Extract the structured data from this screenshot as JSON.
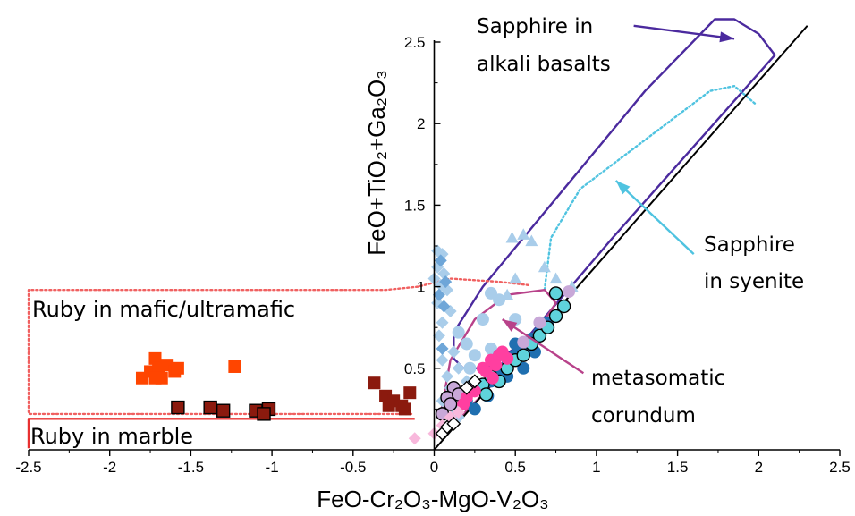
{
  "chart_data": {
    "type": "scatter",
    "title": "",
    "xlabel": "FeO-Cr₂O₃-MgO-V₂O₃",
    "ylabel": "FeO+TiO₂+Ga₂O₃",
    "xlim": [
      -2.5,
      2.5
    ],
    "ylim": [
      0,
      2.6
    ],
    "x_ticks": [
      -2.5,
      -2,
      -1.5,
      -1,
      -0.5,
      0,
      0.5,
      1,
      1.5,
      2,
      2.5
    ],
    "x_tick_labels": [
      "-2.5",
      "-2",
      "-1.5",
      "-1",
      "-0.5",
      "0",
      "0.5",
      "1",
      "1.5",
      "2",
      "2.5"
    ],
    "y_ticks": [
      0.5,
      1,
      1.5,
      2,
      2.5
    ],
    "y_tick_labels": [
      "0.5",
      "1",
      "1.5",
      "2",
      "2.5"
    ],
    "grid": false,
    "colors": {
      "mafic_ruby": "#ff4500",
      "marble_ruby": "#8b1a0e",
      "alkali_basalt_field": "#4b2a9e",
      "syenite_field": "#4fc3e0",
      "metasomatic_field": "#b8428a",
      "mafic_field": "#f06060",
      "marble_field": "#e83030",
      "dark_blue": "#1f6fb0",
      "light_blue": "#a9cdea",
      "cyan": "#5fd3dc",
      "pink": "#ff3fa0",
      "light_pink": "#f8b8dc",
      "lavender": "#c8a8d8"
    },
    "one_to_one_line": [
      [
        0,
        0
      ],
      [
        2.3,
        2.6
      ]
    ],
    "series": [
      {
        "marker": "square",
        "color": "#ff4500",
        "edge": "none",
        "points": [
          [
            -1.8,
            0.44
          ],
          [
            -1.75,
            0.48
          ],
          [
            -1.72,
            0.56
          ],
          [
            -1.7,
            0.5
          ],
          [
            -1.68,
            0.44
          ],
          [
            -1.65,
            0.52
          ],
          [
            -1.6,
            0.48
          ],
          [
            -1.58,
            0.5
          ],
          [
            -1.72,
            0.44
          ],
          [
            -1.23,
            0.51
          ]
        ]
      },
      {
        "marker": "square",
        "color": "#8b1a0e",
        "edge": "none",
        "points": [
          [
            -0.37,
            0.41
          ],
          [
            -0.3,
            0.33
          ],
          [
            -0.25,
            0.3
          ],
          [
            -0.2,
            0.27
          ],
          [
            -0.15,
            0.35
          ],
          [
            -0.28,
            0.27
          ],
          [
            -0.18,
            0.25
          ]
        ]
      },
      {
        "marker": "square",
        "color": "#8b1a0e",
        "edge": "#000000",
        "points": [
          [
            -1.58,
            0.26
          ],
          [
            -1.38,
            0.26
          ],
          [
            -1.3,
            0.24
          ],
          [
            -1.1,
            0.24
          ],
          [
            -1.02,
            0.25
          ],
          [
            -1.05,
            0.22
          ]
        ]
      },
      {
        "marker": "diamond",
        "color": "#a9cdea",
        "edge": "none",
        "points": [
          [
            0.02,
            1.22
          ],
          [
            0.05,
            1.2
          ],
          [
            0.02,
            1.12
          ],
          [
            0.06,
            1.08
          ],
          [
            0.0,
            1.05
          ],
          [
            0.04,
            1.01
          ],
          [
            0.08,
            0.98
          ],
          [
            0.02,
            0.9
          ],
          [
            0.1,
            0.85
          ],
          [
            0.05,
            0.78
          ],
          [
            0.03,
            0.7
          ],
          [
            0.12,
            0.6
          ],
          [
            0.05,
            0.55
          ],
          [
            0.15,
            0.5
          ],
          [
            0.08,
            0.45
          ],
          [
            0.2,
            0.42
          ],
          [
            0.1,
            0.38
          ],
          [
            0.05,
            0.3
          ],
          [
            0.12,
            0.25
          ],
          [
            0.15,
            0.2
          ]
        ]
      },
      {
        "marker": "diamond",
        "color": "#6ea6d8",
        "edge": "none",
        "points": [
          [
            0.04,
            1.16
          ],
          [
            0.07,
            1.03
          ],
          [
            0.03,
            0.95
          ],
          [
            0.06,
            0.88
          ],
          [
            0.05,
            0.62
          ]
        ]
      },
      {
        "marker": "triangle",
        "color": "#a9cdea",
        "edge": "none",
        "points": [
          [
            0.48,
            1.3
          ],
          [
            0.55,
            1.32
          ],
          [
            0.6,
            1.28
          ],
          [
            0.68,
            1.12
          ],
          [
            0.75,
            1.05
          ],
          [
            0.85,
            1.0
          ],
          [
            0.5,
            1.05
          ],
          [
            0.45,
            0.95
          ]
        ]
      },
      {
        "marker": "circle",
        "color": "#a9cdea",
        "edge": "none",
        "points": [
          [
            0.35,
            0.96
          ],
          [
            0.4,
            0.92
          ],
          [
            0.3,
            0.8
          ],
          [
            0.5,
            0.8
          ],
          [
            0.15,
            0.72
          ],
          [
            0.2,
            0.65
          ],
          [
            0.25,
            0.58
          ],
          [
            0.35,
            0.62
          ],
          [
            0.22,
            0.5
          ]
        ]
      },
      {
        "marker": "circle",
        "color": "#1f6fb0",
        "edge": "none",
        "points": [
          [
            0.2,
            0.3
          ],
          [
            0.3,
            0.38
          ],
          [
            0.35,
            0.42
          ],
          [
            0.4,
            0.48
          ],
          [
            0.45,
            0.52
          ],
          [
            0.5,
            0.58
          ],
          [
            0.55,
            0.62
          ],
          [
            0.6,
            0.68
          ],
          [
            0.65,
            0.72
          ],
          [
            0.7,
            0.78
          ],
          [
            0.25,
            0.25
          ],
          [
            0.45,
            0.45
          ],
          [
            0.55,
            0.5
          ],
          [
            0.4,
            0.58
          ],
          [
            0.5,
            0.65
          ],
          [
            0.62,
            0.6
          ],
          [
            0.33,
            0.33
          ]
        ]
      },
      {
        "marker": "circle",
        "color": "#5fd3dc",
        "edge": "#000000",
        "points": [
          [
            0.3,
            0.4
          ],
          [
            0.35,
            0.45
          ],
          [
            0.4,
            0.42
          ],
          [
            0.45,
            0.5
          ],
          [
            0.5,
            0.55
          ],
          [
            0.55,
            0.58
          ],
          [
            0.6,
            0.65
          ],
          [
            0.65,
            0.7
          ],
          [
            0.7,
            0.75
          ],
          [
            0.75,
            0.82
          ],
          [
            0.8,
            0.88
          ],
          [
            0.75,
            0.96
          ],
          [
            0.32,
            0.34
          ]
        ]
      },
      {
        "marker": "circle",
        "color": "#c8a8d8",
        "edge": "#000000",
        "points": [
          [
            0.12,
            0.38
          ],
          [
            0.08,
            0.32
          ],
          [
            0.05,
            0.22
          ],
          [
            0.1,
            0.28
          ],
          [
            0.15,
            0.34
          ]
        ]
      },
      {
        "marker": "circle",
        "color": "#c8a8d8",
        "edge": "none",
        "points": [
          [
            0.83,
            0.97
          ],
          [
            0.65,
            0.78
          ],
          [
            0.55,
            0.66
          ]
        ]
      },
      {
        "marker": "circle",
        "color": "#ff3fa0",
        "edge": "none",
        "points": [
          [
            0.3,
            0.5
          ],
          [
            0.35,
            0.55
          ],
          [
            0.4,
            0.58
          ],
          [
            0.45,
            0.56
          ],
          [
            0.38,
            0.52
          ],
          [
            0.32,
            0.48
          ],
          [
            0.42,
            0.6
          ],
          [
            0.2,
            0.32
          ],
          [
            0.25,
            0.36
          ],
          [
            0.18,
            0.28
          ],
          [
            0.36,
            0.44
          ]
        ]
      },
      {
        "marker": "diamond",
        "color": "#f8b8dc",
        "edge": "none",
        "points": [
          [
            -0.12,
            0.07
          ],
          [
            0.0,
            0.1
          ],
          [
            0.05,
            0.15
          ],
          [
            0.1,
            0.2
          ],
          [
            0.15,
            0.23
          ]
        ]
      },
      {
        "marker": "diamond",
        "color": "#ffffff",
        "edge": "#000000",
        "points": [
          [
            0.05,
            0.1
          ],
          [
            0.08,
            0.14
          ],
          [
            0.12,
            0.16
          ],
          [
            0.2,
            0.38
          ],
          [
            0.25,
            0.42
          ]
        ]
      }
    ],
    "fields": [
      {
        "label": "Sapphire in alkali basalts",
        "color": "#4b2a9e",
        "style": "solid",
        "path": [
          [
            0.12,
            0.56
          ],
          [
            0.12,
            0.72
          ],
          [
            0.3,
            1.0
          ],
          [
            0.8,
            1.6
          ],
          [
            1.3,
            2.2
          ],
          [
            1.73,
            2.64
          ],
          [
            1.85,
            2.64
          ],
          [
            2.0,
            2.55
          ],
          [
            2.1,
            2.42
          ],
          [
            1.1,
            1.3
          ],
          [
            0.55,
            0.66
          ],
          [
            0.32,
            0.5
          ],
          [
            0.18,
            0.5
          ],
          [
            0.12,
            0.56
          ]
        ],
        "closed": false
      },
      {
        "label": "Sapphire in syenite",
        "color": "#4fc3e0",
        "style": "dotted",
        "path": [
          [
            0.68,
            0.98
          ],
          [
            0.72,
            1.3
          ],
          [
            0.9,
            1.6
          ],
          [
            1.3,
            1.9
          ],
          [
            1.7,
            2.2
          ],
          [
            1.85,
            2.23
          ],
          [
            1.98,
            2.12
          ]
        ],
        "closed": false
      },
      {
        "label": "metasomatic corundum",
        "color": "#b8428a",
        "style": "solid",
        "path": [
          [
            0.04,
            0.22
          ],
          [
            0.1,
            0.55
          ],
          [
            0.25,
            0.8
          ],
          [
            0.45,
            0.95
          ],
          [
            0.68,
            0.98
          ],
          [
            0.75,
            0.9
          ],
          [
            0.55,
            0.6
          ],
          [
            0.28,
            0.32
          ],
          [
            0.08,
            0.12
          ],
          [
            0.04,
            0.22
          ]
        ],
        "closed": true
      },
      {
        "label": "Ruby in mafic/ultramafic",
        "color": "#f06060",
        "style": "dotted",
        "path": [
          [
            0.58,
            1.01
          ],
          [
            0.4,
            1.03
          ],
          [
            0.1,
            1.05
          ],
          [
            -0.1,
            1.0
          ],
          [
            -0.3,
            0.98
          ],
          [
            -2.5,
            0.98
          ],
          [
            -2.5,
            0.22
          ],
          [
            -0.14,
            0.22
          ]
        ],
        "closed": false
      },
      {
        "label": "Ruby in marble",
        "color": "#e83030",
        "style": "solid",
        "path": [
          [
            -0.12,
            0.19
          ],
          [
            -2.5,
            0.19
          ],
          [
            -2.5,
            0.01
          ]
        ],
        "closed": false
      }
    ],
    "annotations": [
      {
        "lines": [
          "Sapphire in",
          "alkali basalts"
        ],
        "arrow_from": [
          1.23,
          2.6
        ],
        "arrow_to": [
          1.85,
          2.52
        ],
        "color": "#4b2a9e"
      },
      {
        "lines": [
          "Sapphire",
          "in syenite"
        ],
        "arrow_from": [
          1.6,
          1.2
        ],
        "arrow_to": [
          1.12,
          1.65
        ],
        "color": "#4fc3e0"
      },
      {
        "lines": [
          "metasomatic",
          "corundum"
        ],
        "arrow_from": [
          0.92,
          0.47
        ],
        "arrow_to": [
          0.42,
          0.8
        ],
        "color": "#b8428a"
      },
      {
        "lines": [
          "Ruby in mafic/ultramafic"
        ],
        "arrow_from": null,
        "arrow_to": null,
        "color": null
      },
      {
        "lines": [
          "Ruby in marble"
        ],
        "arrow_from": null,
        "arrow_to": null,
        "color": null
      }
    ]
  }
}
